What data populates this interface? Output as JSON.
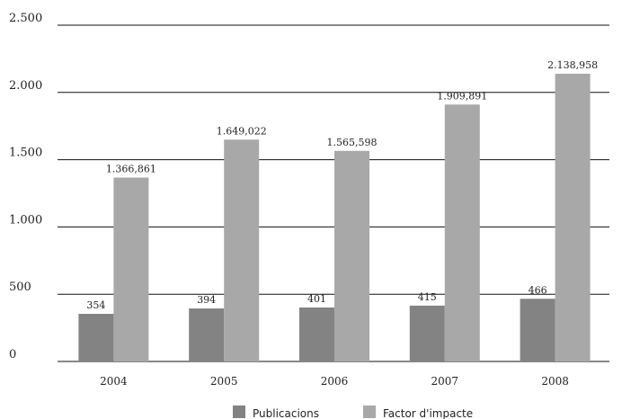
{
  "chart_data": {
    "type": "bar",
    "categories": [
      "2004",
      "2005",
      "2006",
      "2007",
      "2008"
    ],
    "series": [
      {
        "name": "Publicacions",
        "values": [
          354,
          394,
          401,
          415,
          466
        ],
        "labels": [
          "354",
          "394",
          "401",
          "415",
          "466"
        ],
        "color": "#838383"
      },
      {
        "name": "Factor d'impacte",
        "values": [
          1366.861,
          1649.022,
          1565.598,
          1909.891,
          2138.958
        ],
        "labels": [
          "1.366,861",
          "1.649,022",
          "1.565,598",
          "1.909,891",
          "2.138,958"
        ],
        "color": "#a8a8a8"
      }
    ],
    "yticks": [
      {
        "value": 0,
        "label": "0"
      },
      {
        "value": 500,
        "label": "500"
      },
      {
        "value": 1000,
        "label": "1.000"
      },
      {
        "value": 1500,
        "label": "1.500"
      },
      {
        "value": 2000,
        "label": "2.000"
      },
      {
        "value": 2500,
        "label": "2.500"
      }
    ],
    "ylim": [
      0,
      2500
    ],
    "grid": true,
    "legend": "bottom-center",
    "title": "",
    "xlabel": "",
    "ylabel": ""
  }
}
